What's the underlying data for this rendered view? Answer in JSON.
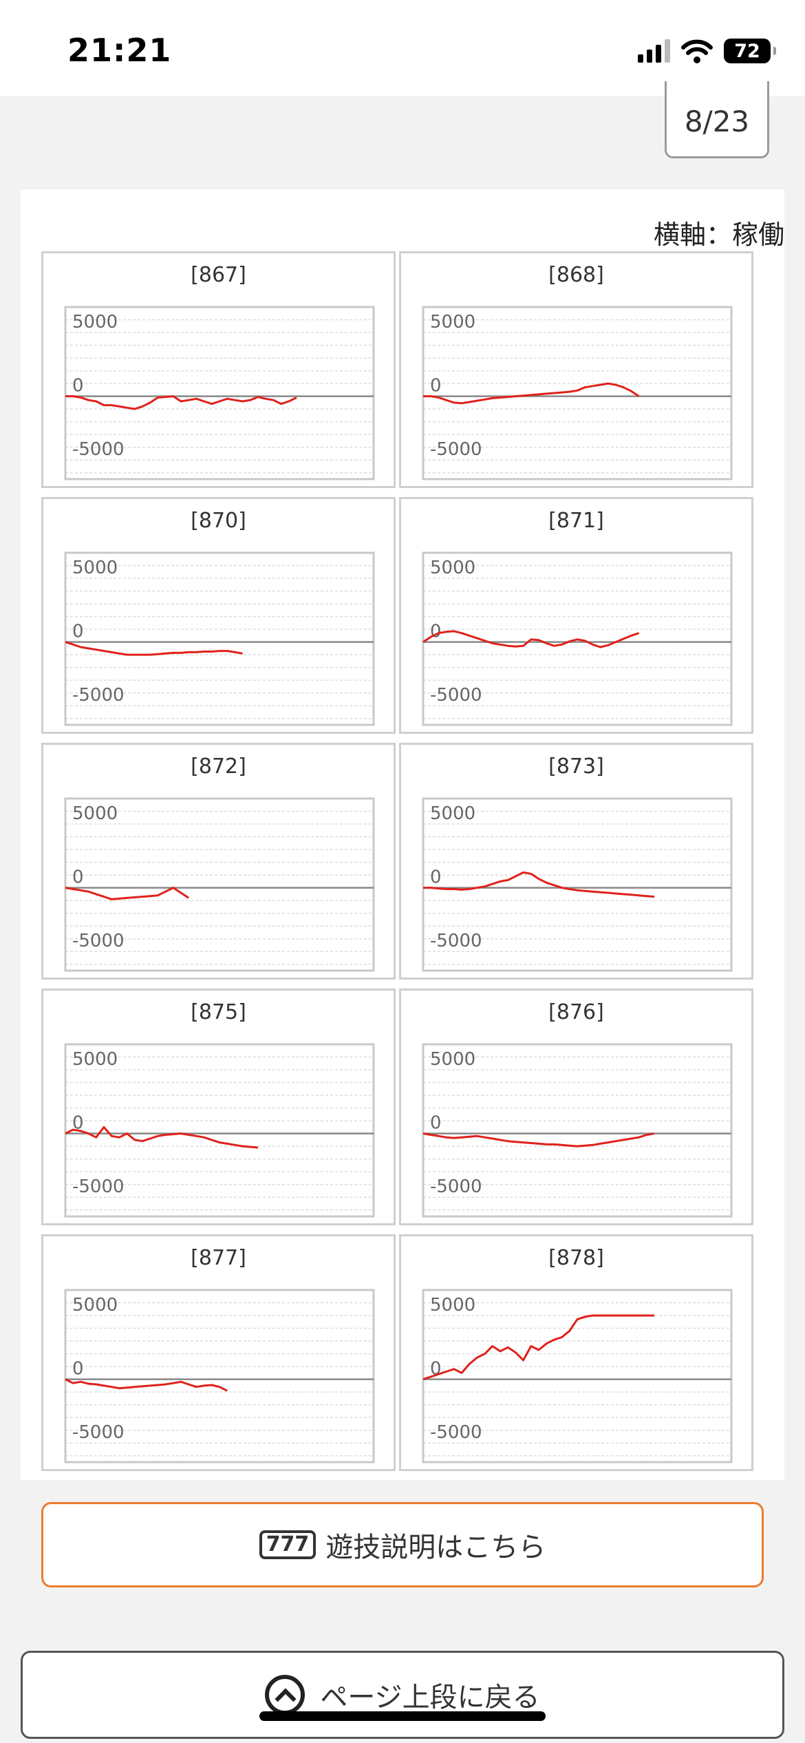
{
  "status_bar": {
    "time": "21:21",
    "battery": "72"
  },
  "page_indicator": "8/23",
  "axis_note": "横軸：稼働",
  "chart_data": [
    {
      "type": "line",
      "title": "[867]",
      "ylim": [
        -6500,
        7000
      ],
      "ticks": [
        5000,
        0,
        -5000
      ],
      "x": [
        0,
        1,
        2,
        3,
        4,
        5,
        6,
        7,
        8,
        9,
        10,
        11,
        12,
        13,
        14,
        15,
        16,
        17,
        18,
        19,
        20,
        21,
        22,
        23,
        24,
        25,
        26,
        27,
        28,
        29,
        30
      ],
      "values": [
        0,
        0,
        -100,
        -300,
        -400,
        -700,
        -700,
        -800,
        -900,
        -1000,
        -800,
        -500,
        -100,
        -50,
        0,
        -400,
        -300,
        -200,
        -400,
        -600,
        -400,
        -200,
        -300,
        -400,
        -300,
        -50,
        -200,
        -300,
        -600,
        -400,
        -100
      ]
    },
    {
      "type": "line",
      "title": "[868]",
      "ylim": [
        -6500,
        7000
      ],
      "ticks": [
        5000,
        0,
        -5000
      ],
      "x": [
        0,
        1,
        2,
        3,
        4,
        5,
        6,
        7,
        8,
        9,
        10,
        11,
        12,
        13,
        14,
        15,
        16,
        17,
        18,
        19,
        20,
        21,
        22,
        23,
        24,
        25,
        26,
        27,
        28
      ],
      "values": [
        0,
        0,
        -100,
        -300,
        -500,
        -550,
        -450,
        -350,
        -250,
        -150,
        -100,
        -50,
        0,
        50,
        100,
        150,
        200,
        250,
        300,
        350,
        450,
        700,
        800,
        900,
        1000,
        900,
        700,
        400,
        0
      ]
    },
    {
      "type": "line",
      "title": "[870]",
      "ylim": [
        -6500,
        7000
      ],
      "ticks": [
        5000,
        0,
        -5000
      ],
      "x": [
        0,
        1,
        2,
        3,
        4,
        5,
        6,
        7,
        8,
        9,
        10,
        11,
        12,
        13,
        14,
        15,
        16,
        17,
        18,
        19,
        20,
        21,
        22,
        23
      ],
      "values": [
        0,
        -200,
        -400,
        -500,
        -600,
        -700,
        -800,
        -900,
        -1000,
        -1000,
        -1000,
        -1000,
        -950,
        -900,
        -850,
        -850,
        -800,
        -800,
        -750,
        -750,
        -700,
        -700,
        -800,
        -900
      ]
    },
    {
      "type": "line",
      "title": "[871]",
      "ylim": [
        -6500,
        7000
      ],
      "ticks": [
        5000,
        0,
        -5000
      ],
      "x": [
        0,
        1,
        2,
        3,
        4,
        5,
        6,
        7,
        8,
        9,
        10,
        11,
        12,
        13,
        14,
        15,
        16,
        17,
        18,
        19,
        20,
        21,
        22,
        23,
        24,
        25,
        26,
        27,
        28
      ],
      "values": [
        0,
        400,
        700,
        800,
        850,
        700,
        500,
        300,
        100,
        -100,
        -200,
        -300,
        -350,
        -300,
        200,
        150,
        -100,
        -300,
        -200,
        50,
        200,
        100,
        -200,
        -400,
        -250,
        0,
        250,
        500,
        700
      ]
    },
    {
      "type": "line",
      "title": "[872]",
      "ylim": [
        -6500,
        7000
      ],
      "ticks": [
        5000,
        0,
        -5000
      ],
      "x": [
        0,
        1,
        2,
        3,
        4,
        5,
        6,
        7,
        8,
        9,
        10,
        11,
        12,
        13,
        14,
        15,
        16
      ],
      "values": [
        0,
        -100,
        -200,
        -300,
        -500,
        -700,
        -900,
        -850,
        -800,
        -750,
        -700,
        -650,
        -600,
        -300,
        0,
        -400,
        -800
      ]
    },
    {
      "type": "line",
      "title": "[873]",
      "ylim": [
        -6500,
        7000
      ],
      "ticks": [
        5000,
        0,
        -5000
      ],
      "x": [
        0,
        1,
        2,
        3,
        4,
        5,
        6,
        7,
        8,
        9,
        10,
        11,
        12,
        13,
        14,
        15,
        16,
        17,
        18,
        19,
        20,
        21,
        22,
        23,
        24,
        25,
        26,
        27,
        28,
        29,
        30
      ],
      "values": [
        0,
        0,
        -50,
        -100,
        -100,
        -150,
        -100,
        0,
        100,
        300,
        500,
        600,
        900,
        1200,
        1100,
        700,
        400,
        200,
        0,
        -100,
        -200,
        -250,
        -300,
        -350,
        -400,
        -450,
        -500,
        -550,
        -600,
        -650,
        -700
      ]
    },
    {
      "type": "line",
      "title": "[875]",
      "ylim": [
        -6500,
        7000
      ],
      "ticks": [
        5000,
        0,
        -5000
      ],
      "x": [
        0,
        1,
        2,
        3,
        4,
        5,
        6,
        7,
        8,
        9,
        10,
        11,
        12,
        13,
        14,
        15,
        16,
        17,
        18,
        19,
        20,
        21,
        22,
        23,
        24,
        25
      ],
      "values": [
        0,
        300,
        200,
        0,
        -300,
        500,
        -200,
        -300,
        0,
        -500,
        -600,
        -400,
        -200,
        -100,
        -50,
        0,
        -100,
        -200,
        -300,
        -500,
        -700,
        -800,
        -900,
        -1000,
        -1050,
        -1100
      ]
    },
    {
      "type": "line",
      "title": "[876]",
      "ylim": [
        -6500,
        7000
      ],
      "ticks": [
        5000,
        0,
        -5000
      ],
      "x": [
        0,
        1,
        2,
        3,
        4,
        5,
        6,
        7,
        8,
        9,
        10,
        11,
        12,
        13,
        14,
        15,
        16,
        17,
        18,
        19,
        20,
        21,
        22,
        23,
        24,
        25,
        26,
        27,
        28,
        29,
        30
      ],
      "values": [
        0,
        -100,
        -200,
        -300,
        -350,
        -300,
        -250,
        -200,
        -300,
        -400,
        -500,
        -600,
        -650,
        -700,
        -750,
        -800,
        -850,
        -850,
        -900,
        -950,
        -1000,
        -950,
        -900,
        -800,
        -700,
        -600,
        -500,
        -400,
        -300,
        -100,
        0
      ]
    },
    {
      "type": "line",
      "title": "[877]",
      "ylim": [
        -6500,
        7000
      ],
      "ticks": [
        5000,
        0,
        -5000
      ],
      "x": [
        0,
        1,
        2,
        3,
        4,
        5,
        6,
        7,
        8,
        9,
        10,
        11,
        12,
        13,
        14,
        15,
        16,
        17,
        18,
        19,
        20,
        21
      ],
      "values": [
        0,
        -300,
        -200,
        -350,
        -400,
        -500,
        -600,
        -700,
        -650,
        -600,
        -550,
        -500,
        -450,
        -400,
        -300,
        -200,
        -400,
        -600,
        -500,
        -450,
        -600,
        -900
      ]
    },
    {
      "type": "line",
      "title": "[878]",
      "ylim": [
        -6500,
        7000
      ],
      "ticks": [
        5000,
        0,
        -5000
      ],
      "x": [
        0,
        1,
        2,
        3,
        4,
        5,
        6,
        7,
        8,
        9,
        10,
        11,
        12,
        13,
        14,
        15,
        16,
        17,
        18,
        19,
        20,
        21,
        22,
        23,
        24,
        25,
        26,
        27,
        28,
        29,
        30
      ],
      "values": [
        0,
        200,
        400,
        600,
        800,
        500,
        1200,
        1700,
        2000,
        2600,
        2200,
        2500,
        2100,
        1500,
        2600,
        2300,
        2800,
        3100,
        3300,
        3800,
        4700,
        4900,
        5000,
        5000,
        5000,
        5000,
        5000,
        5000,
        5000,
        5000,
        5000
      ]
    }
  ],
  "buttons": {
    "explain_badge": "777",
    "explain_label": "遊技説明はこちら",
    "back_to_top_label": "ページ上段に戻る"
  },
  "colors": {
    "series": "#e0211b",
    "zero_line": "#888888",
    "grid": "#dddddd",
    "button_border": "#ec7b2e"
  }
}
